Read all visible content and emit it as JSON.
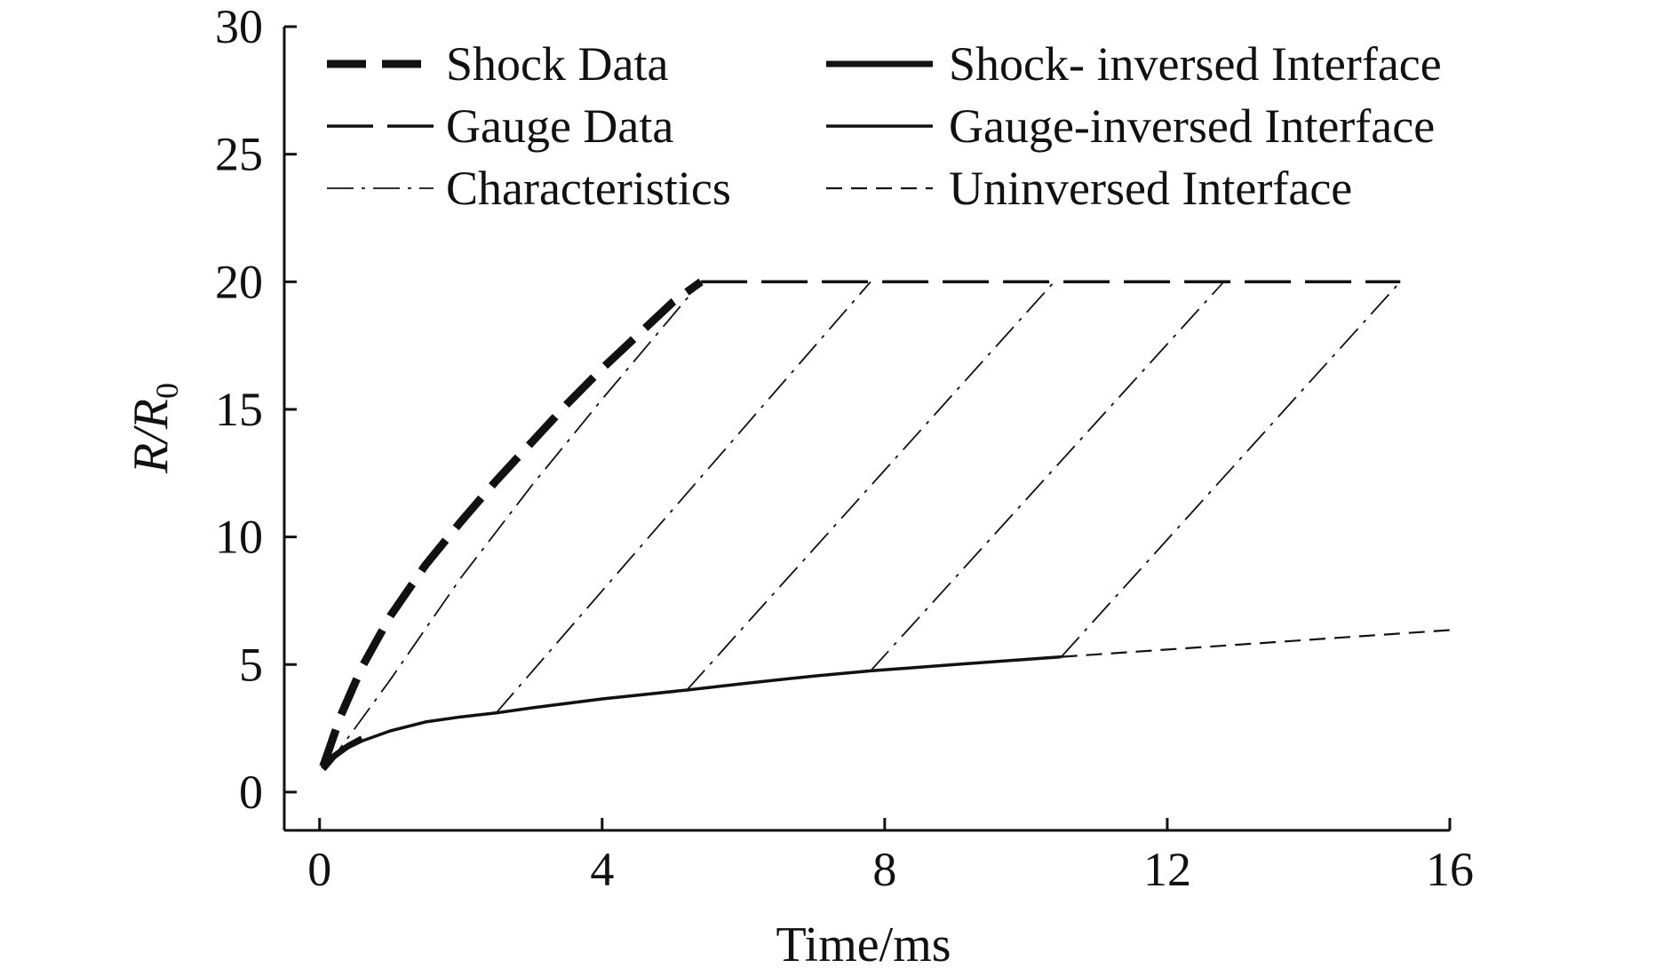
{
  "chart_data": {
    "type": "line",
    "title": "",
    "xlabel": "Time/ms",
    "ylabel": "R/R",
    "ylabel_subscript": "0",
    "xlim": [
      -0.5,
      16
    ],
    "ylim": [
      -1.5,
      30
    ],
    "xticks": [
      0,
      4,
      8,
      12,
      16
    ],
    "yticks": [
      0,
      5,
      10,
      15,
      20,
      25,
      30
    ],
    "grid": false,
    "legend_position": "top",
    "series": [
      {
        "name": "Shock Data",
        "style": "thick-dash",
        "x": [
          0.05,
          0.3,
          0.6,
          1.0,
          1.5,
          2.0,
          2.5,
          3.0,
          3.5,
          4.0,
          4.5,
          5.0,
          5.3,
          5.4
        ],
        "y": [
          1.0,
          3.0,
          4.9,
          6.9,
          8.9,
          10.6,
          12.2,
          13.7,
          15.2,
          16.6,
          17.9,
          19.2,
          19.8,
          20.0
        ]
      },
      {
        "name": "Shock- inversed Interface",
        "style": "thick-solid",
        "x": [
          0.05,
          0.2,
          0.4,
          0.6
        ],
        "y": [
          0.9,
          1.4,
          1.8,
          2.1
        ]
      },
      {
        "name": "Gauge Data",
        "style": "long-dash",
        "x": [
          5.4,
          15.3
        ],
        "y": [
          20.0,
          20.0
        ]
      },
      {
        "name": "Gauge-inversed Interface",
        "style": "solid",
        "x": [
          0.05,
          0.3,
          0.6,
          1.0,
          1.5,
          2.0,
          2.5,
          3.0,
          4.0,
          5.2,
          6.0,
          7.0,
          7.8,
          9.0,
          10.0,
          10.5
        ],
        "y": [
          0.9,
          1.6,
          2.0,
          2.4,
          2.75,
          2.95,
          3.1,
          3.3,
          3.65,
          4.0,
          4.25,
          4.55,
          4.75,
          5.0,
          5.2,
          5.3
        ]
      },
      {
        "name": "Characteristics",
        "style": "dash-dot",
        "lines": [
          {
            "x": [
              0.1,
              0.5,
              1.0,
              1.5,
              2.0,
              3.0,
              4.0,
              5.4
            ],
            "y": [
              1.0,
              2.5,
              4.4,
              6.4,
              8.4,
              12.0,
              15.4,
              20.0
            ]
          },
          {
            "x": [
              2.5,
              7.8
            ],
            "y": [
              3.1,
              20.0
            ]
          },
          {
            "x": [
              5.2,
              10.4
            ],
            "y": [
              4.0,
              20.0
            ]
          },
          {
            "x": [
              7.8,
              12.8
            ],
            "y": [
              4.75,
              20.0
            ]
          },
          {
            "x": [
              10.5,
              15.3
            ],
            "y": [
              5.3,
              20.0
            ]
          }
        ]
      },
      {
        "name": "Uninversed Interface",
        "style": "short-dash",
        "x": [
          10.5,
          16.0
        ],
        "y": [
          5.3,
          6.35
        ]
      }
    ],
    "legend": [
      {
        "label": "Shock Data",
        "style": "thick-dash"
      },
      {
        "label": "Gauge Data",
        "style": "long-dash"
      },
      {
        "label": "Characteristics",
        "style": "dash-dot"
      },
      {
        "label": "Shock- inversed Interface",
        "style": "thick-solid"
      },
      {
        "label": "Gauge-inversed Interface",
        "style": "solid"
      },
      {
        "label": "Uninversed Interface",
        "style": "short-dash"
      }
    ]
  }
}
